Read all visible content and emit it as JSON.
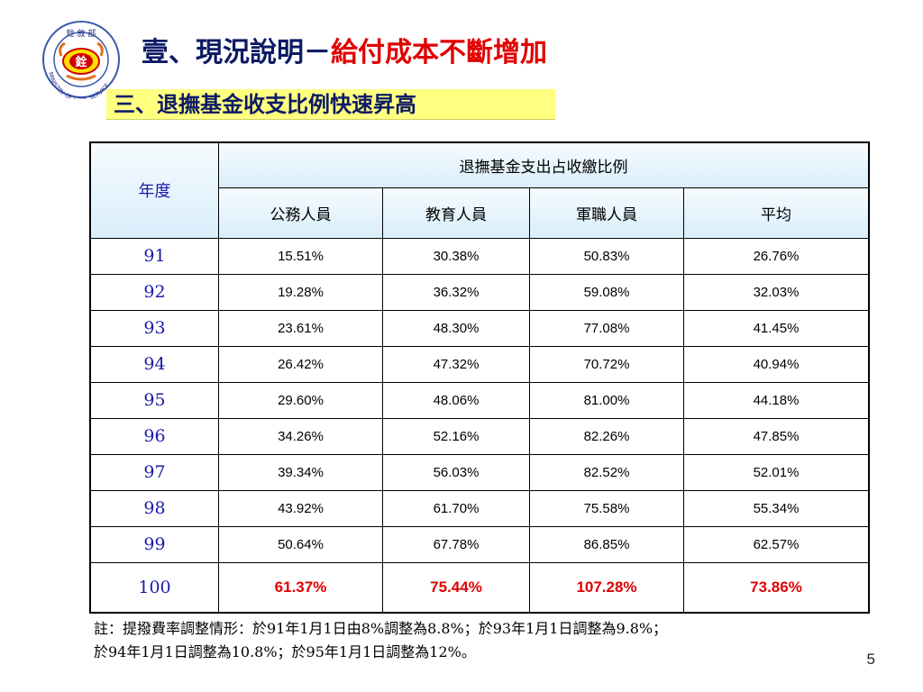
{
  "logo": {
    "text_top": "銓 敘 部",
    "text_center": "銓",
    "text_ring": "MINISTRY OF CIVIL SERVICE"
  },
  "title": {
    "part1": "壹、現況說明－",
    "part2": "給付成本不斷增加"
  },
  "subtitle": "三、退撫基金收支比例快速昇高",
  "table": {
    "year_header": "年度",
    "group_header": "退撫基金支出占收繳比例",
    "columns": [
      "公務人員",
      "教育人員",
      "軍職人員",
      "平均"
    ],
    "rows": [
      {
        "year": "91",
        "values": [
          "15.51%",
          "30.38%",
          "50.83%",
          "26.76%"
        ]
      },
      {
        "year": "92",
        "values": [
          "19.28%",
          "36.32%",
          "59.08%",
          "32.03%"
        ]
      },
      {
        "year": "93",
        "values": [
          "23.61%",
          "48.30%",
          "77.08%",
          "41.45%"
        ]
      },
      {
        "year": "94",
        "values": [
          "26.42%",
          "47.32%",
          "70.72%",
          "40.94%"
        ]
      },
      {
        "year": "95",
        "values": [
          "29.60%",
          "48.06%",
          "81.00%",
          "44.18%"
        ]
      },
      {
        "year": "96",
        "values": [
          "34.26%",
          "52.16%",
          "82.26%",
          "47.85%"
        ]
      },
      {
        "year": "97",
        "values": [
          "39.34%",
          "56.03%",
          "82.52%",
          "52.01%"
        ]
      },
      {
        "year": "98",
        "values": [
          "43.92%",
          "61.70%",
          "75.58%",
          "55.34%"
        ]
      },
      {
        "year": "99",
        "values": [
          "50.64%",
          "67.78%",
          "86.85%",
          "62.57%"
        ]
      },
      {
        "year": "100",
        "values": [
          "61.37%",
          "75.44%",
          "107.28%",
          "73.86%"
        ]
      }
    ]
  },
  "note": {
    "line1": "註：提撥費率調整情形：於91年1月1日由8%調整為8.8%；於93年1月1日調整為9.8%；",
    "line2": "於94年1月1日調整為10.8%；於95年1月1日調整為12%。"
  },
  "page_number": "5"
}
